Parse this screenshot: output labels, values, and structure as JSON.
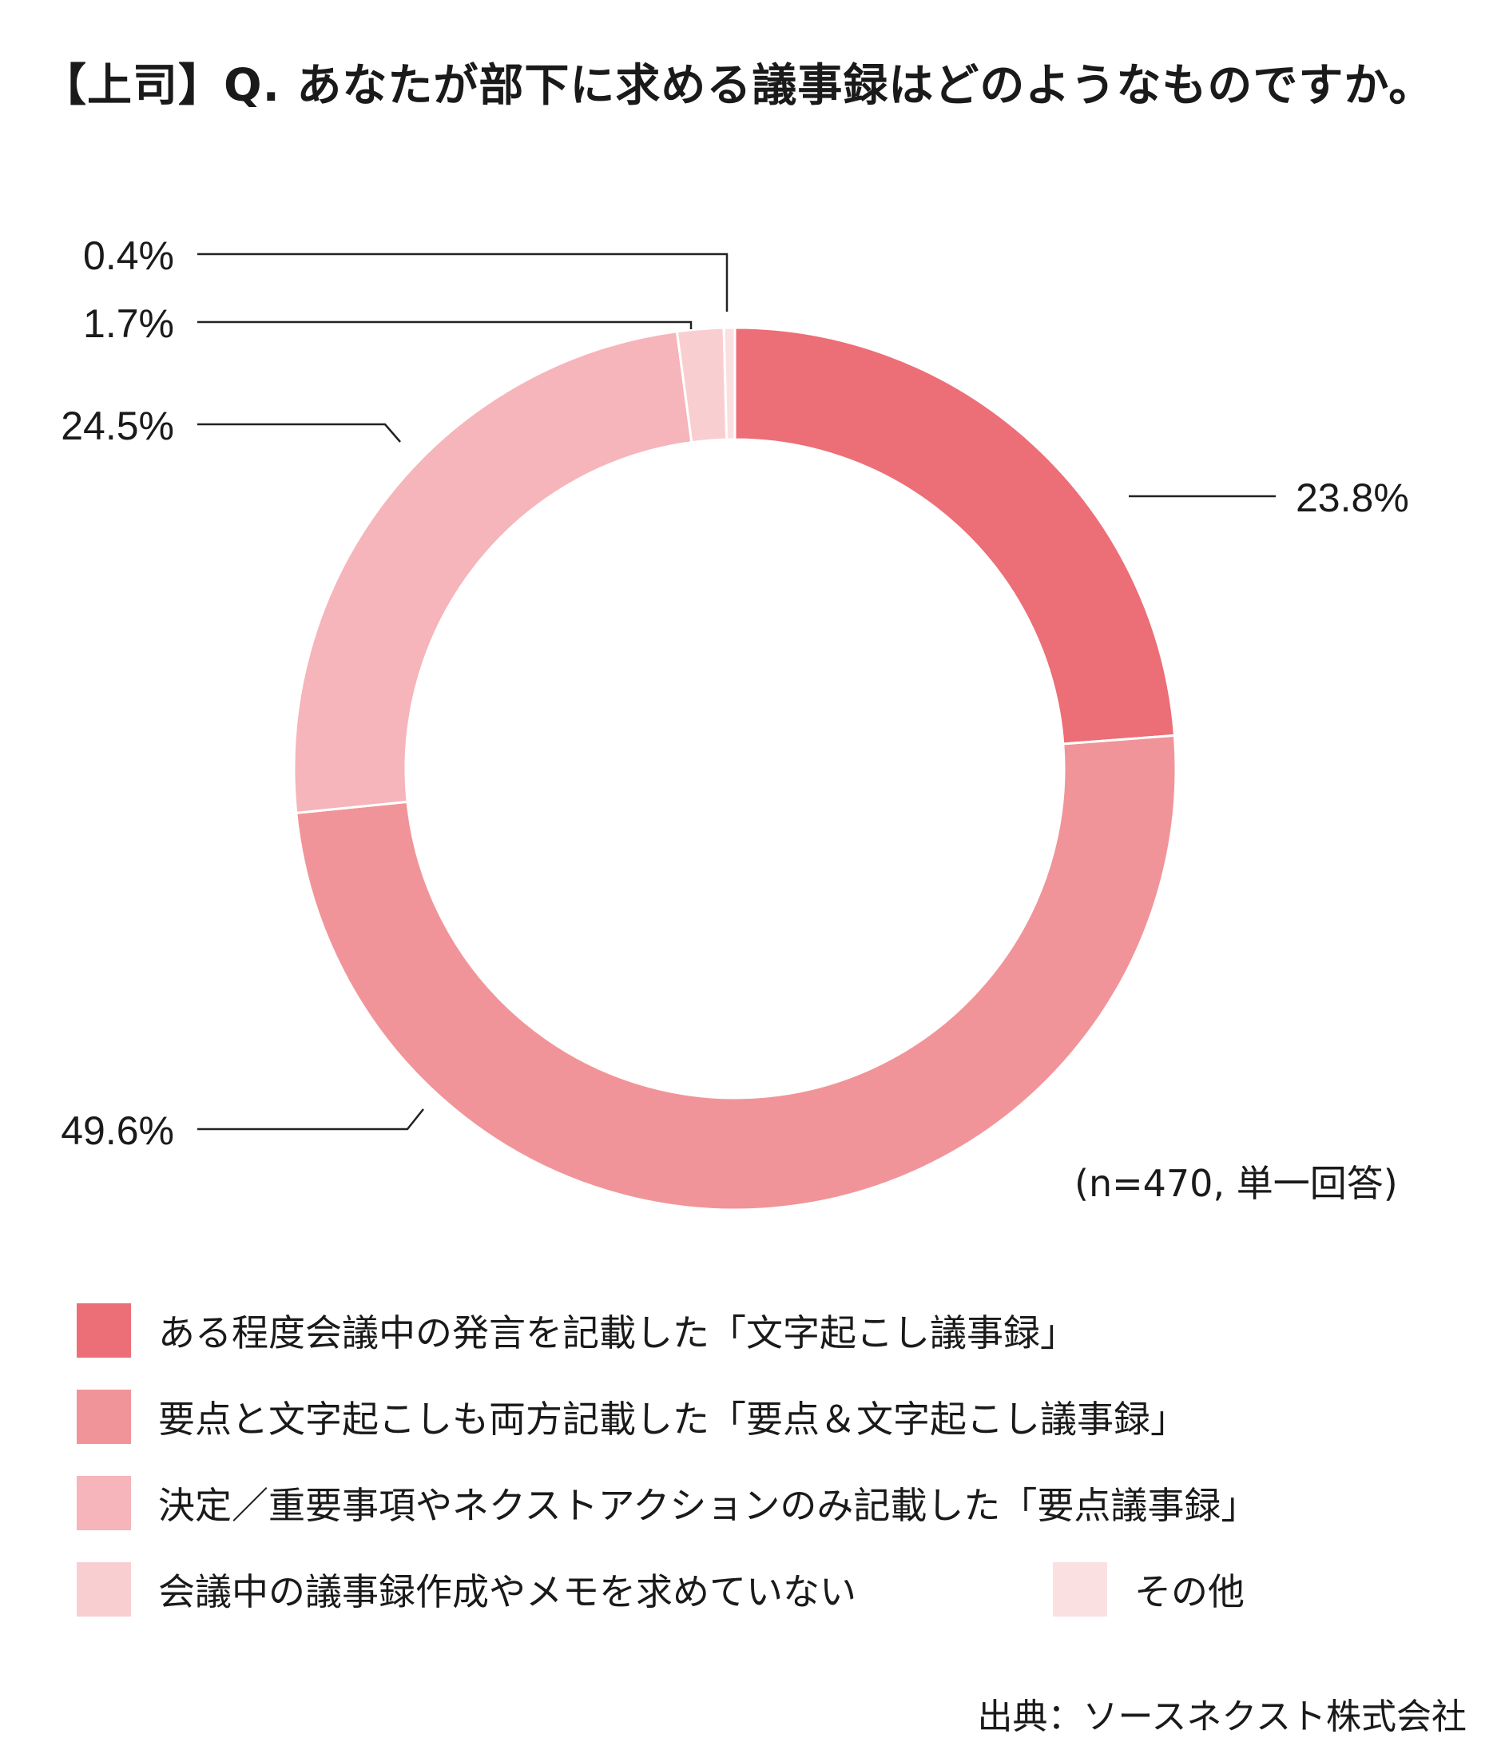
{
  "title": "【上司】Q. あなたが部下に求める議事録はどのようなものですか。",
  "note": "(n=470, 単一回答)",
  "source": "出典：ソースネクスト株式会社",
  "chart_data": {
    "type": "pie",
    "donut": true,
    "title": "【上司】Q. あなたが部下に求める議事録はどのようなものですか。",
    "slices": [
      {
        "label": "ある程度会議中の発言を記載した「文字起こし議事録」",
        "value": 23.8,
        "value_label": "23.8%",
        "color": "#ec6e76"
      },
      {
        "label": "要点と文字起こしも両方記載した「要点＆文字起こし議事録」",
        "value": 49.6,
        "value_label": "49.6%",
        "color": "#f19499"
      },
      {
        "label": "決定／重要事項やネクストアクションのみ記載した「要点議事録」",
        "value": 24.5,
        "value_label": "24.5%",
        "color": "#f5b5ba"
      },
      {
        "label": "会議中の議事録作成やメモを求めていない",
        "value": 1.7,
        "value_label": "1.7%",
        "color": "#f9ced1"
      },
      {
        "label": "その他",
        "value": 0.4,
        "value_label": "0.4%",
        "color": "#fbe0e2"
      }
    ],
    "start_angle": "12 o'clock",
    "direction": "clockwise",
    "legend": "bottom"
  }
}
